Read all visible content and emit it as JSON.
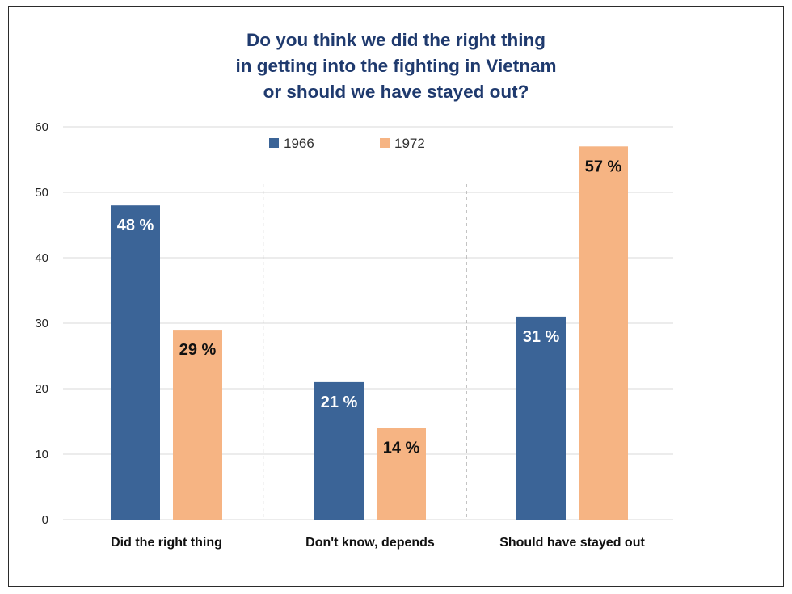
{
  "chart_data": {
    "type": "bar",
    "title_lines": [
      "Do you think we did the right thing",
      "in getting into the fighting in Vietnam",
      "or should we have stayed out?"
    ],
    "categories": [
      "Did the right thing",
      "Don't know, depends",
      "Should have stayed out"
    ],
    "series": [
      {
        "name": "1966",
        "color": "#3b6497",
        "values": [
          48,
          21,
          31
        ],
        "labels": [
          "48 %",
          "21 %",
          "31 %"
        ],
        "label_color": "#ffffff"
      },
      {
        "name": "1972",
        "color": "#f6b483",
        "values": [
          29,
          14,
          57
        ],
        "labels": [
          "29 %",
          "14 %",
          "57 %"
        ],
        "label_color": "#111111"
      }
    ],
    "ylim": [
      0,
      60
    ],
    "yticks": [
      "0",
      "10",
      "20",
      "30",
      "40",
      "50",
      "60"
    ],
    "xlabel": "",
    "ylabel": "",
    "grid": true,
    "legend_position": "top-center"
  }
}
